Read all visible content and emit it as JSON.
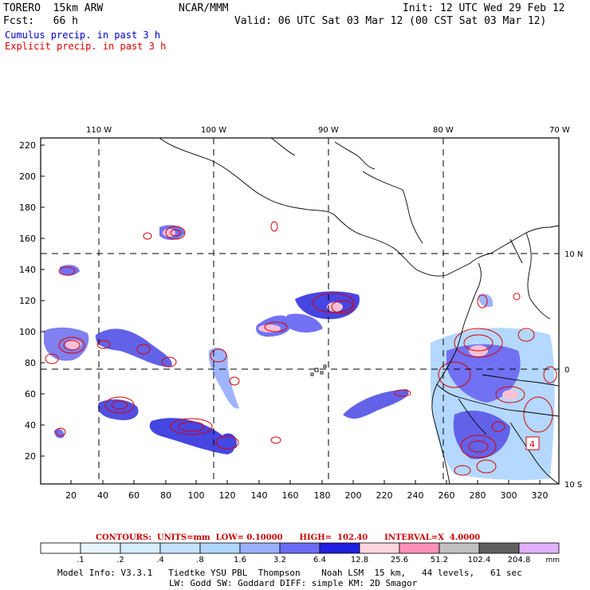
{
  "header": {
    "model": "TORERO  15km ARW",
    "org": "NCAR/MMM",
    "init": "Init: 12 UTC Wed 29 Feb 12",
    "fcst": "Fcst:   66 h",
    "valid": "Valid: 06 UTC Sat 03 Mar 12 (00 CST Sat 03 Mar 12)",
    "cumulus": "Cumulus precip. in past 3 h",
    "explicit": "Explicit precip. in past 3 h"
  },
  "map": {
    "lon_labels": [
      "110 W",
      "100 W",
      "90 W",
      "80 W",
      "70 W"
    ],
    "lat_labels": [
      "10 N",
      "0",
      "10 S"
    ],
    "y_ticks": [
      "220",
      "200",
      "180",
      "160",
      "140",
      "120",
      "100",
      "80",
      "60",
      "40",
      "20"
    ],
    "x_ticks": [
      "20",
      "40",
      "60",
      "80",
      "100",
      "120",
      "140",
      "160",
      "180",
      "200",
      "220",
      "240",
      "260",
      "280",
      "300",
      "320"
    ],
    "marker": "4"
  },
  "contours": {
    "text": "CONTOURS:  UNITS=mm  LOW= 0.10000      HIGH=  102.40      INTERVAL=X  4.0000"
  },
  "colorbar": {
    "labels": [
      ".1",
      ".2",
      ".4",
      ".8",
      "1.6",
      "3.2",
      "6.4",
      "12.8",
      "25.6",
      "51.2",
      "102.4",
      "204.8"
    ],
    "unit": "mm",
    "colors": [
      "#ffffff",
      "#e8f4ff",
      "#d6ecff",
      "#c4e2ff",
      "#b0d6ff",
      "#9ab0ff",
      "#6a6af4",
      "#2020e0",
      "#ffd6e0",
      "#ff90b8",
      "#c0c0c0",
      "#606060",
      "#e0b0ff"
    ]
  },
  "footer": {
    "line1": "Model Info: V3.3.1   Tiedtke YSU PBL  Thompson    Noah LSM  15 km,   44 levels,   61 sec",
    "line2": "LW: Godd SW: Goddard DIFF: simple KM: 2D Smagor"
  }
}
